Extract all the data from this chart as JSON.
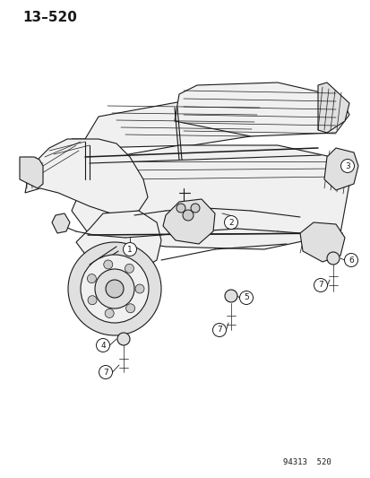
{
  "title": "13–520",
  "footer": "94313  520",
  "bg_color": "#ffffff",
  "line_color": "#1a1a1a",
  "fill_light": "#f0f0f0",
  "fill_mid": "#e0e0e0",
  "fill_dark": "#cccccc",
  "title_fontsize": 11,
  "footer_fontsize": 6.5,
  "callout_fontsize": 6.5,
  "callout_r": 0.018
}
